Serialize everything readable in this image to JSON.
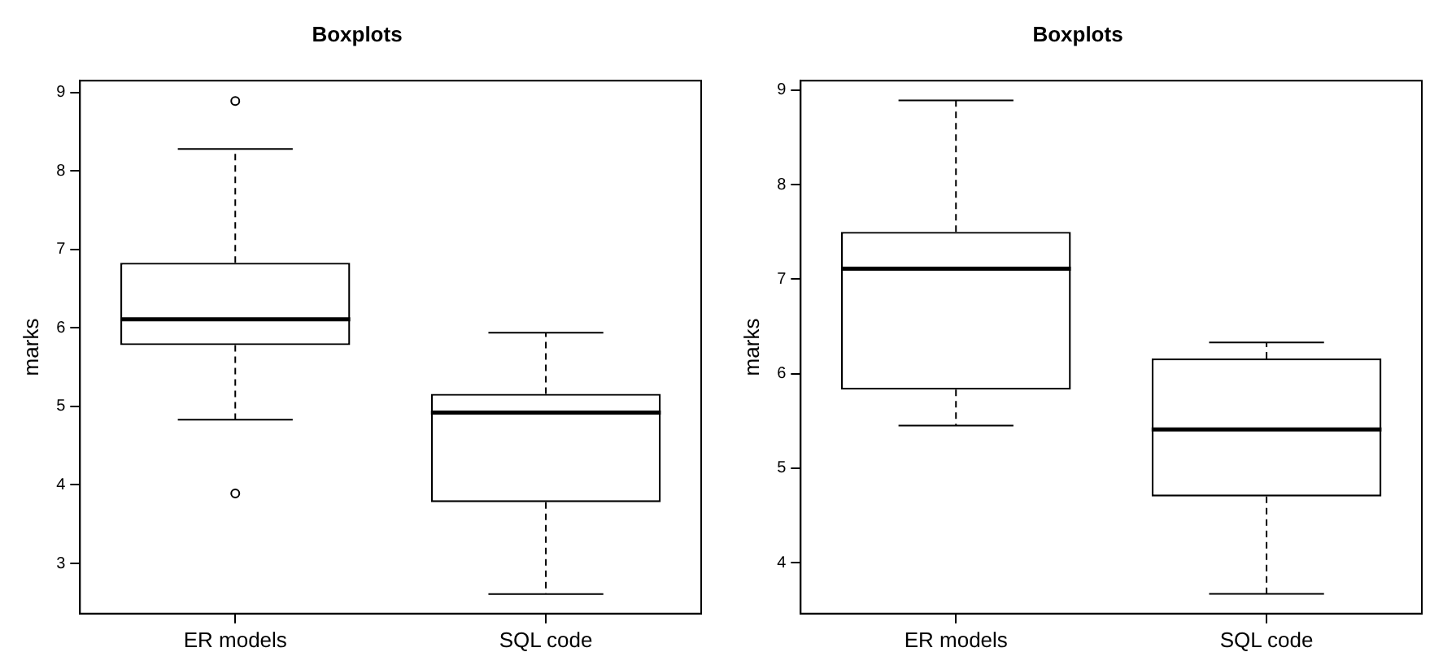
{
  "chart_data": [
    {
      "type": "box",
      "title": "Boxplots",
      "ylabel": "marks",
      "categories": [
        "ER models",
        "SQL code"
      ],
      "boxes": [
        {
          "low": 4.83,
          "q1": 5.78,
          "median": 6.11,
          "q3": 6.83,
          "high": 8.28,
          "outliers": [
            8.89,
            3.89
          ]
        },
        {
          "low": 2.61,
          "q1": 3.78,
          "median": 4.92,
          "q3": 5.16,
          "high": 5.94
        }
      ],
      "ylim": [
        2.36,
        9.15
      ],
      "yticks": [
        3,
        4,
        5,
        6,
        7,
        8,
        9
      ],
      "grid": false
    },
    {
      "type": "box",
      "title": "Boxplots",
      "ylabel": "marks",
      "categories": [
        "ER models",
        "SQL code"
      ],
      "boxes": [
        {
          "low": 5.45,
          "q1": 5.83,
          "median": 7.11,
          "q3": 7.5,
          "high": 8.89
        },
        {
          "low": 3.67,
          "q1": 4.7,
          "median": 5.41,
          "q3": 6.16,
          "high": 6.33
        }
      ],
      "ylim": [
        3.46,
        9.1
      ],
      "yticks": [
        4,
        5,
        6,
        7,
        8,
        9
      ],
      "grid": false
    }
  ]
}
